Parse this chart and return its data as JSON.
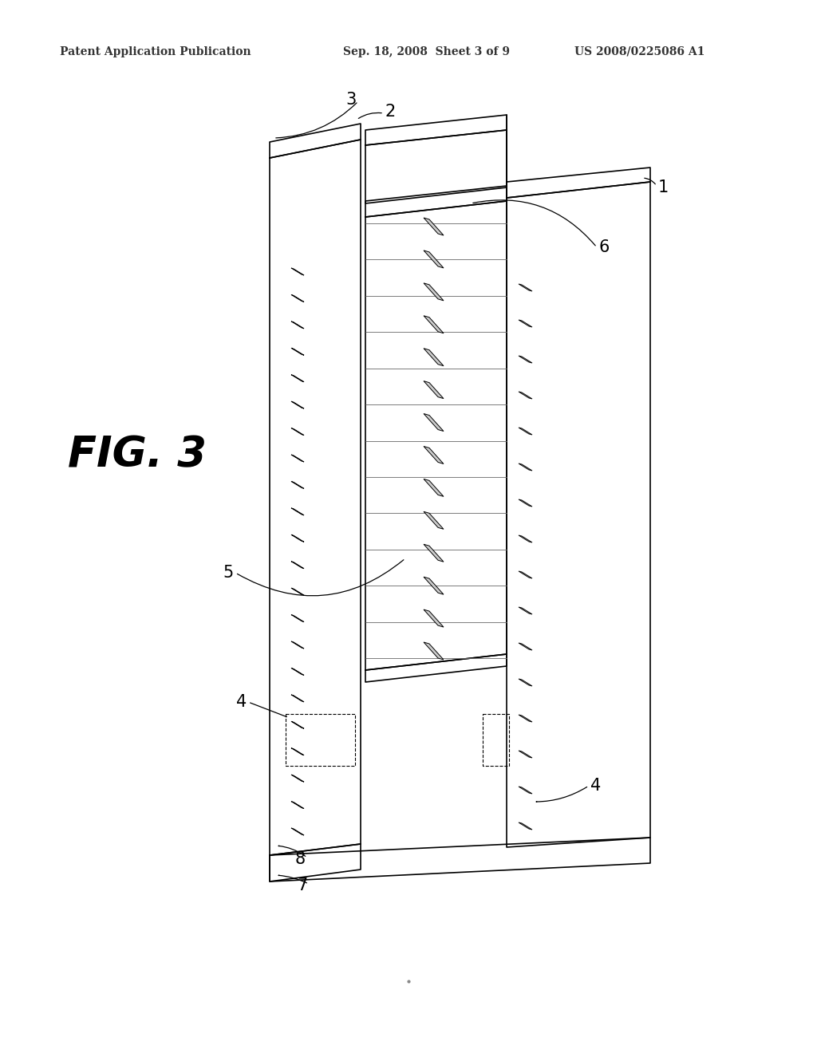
{
  "background_color": "#ffffff",
  "header_left": "Patent Application Publication",
  "header_center": "Sep. 18, 2008  Sheet 3 of 9",
  "header_right": "US 2008/0225086 A1",
  "fig_label": "FIG. 3",
  "line_color": "#000000",
  "line_width": 1.2
}
